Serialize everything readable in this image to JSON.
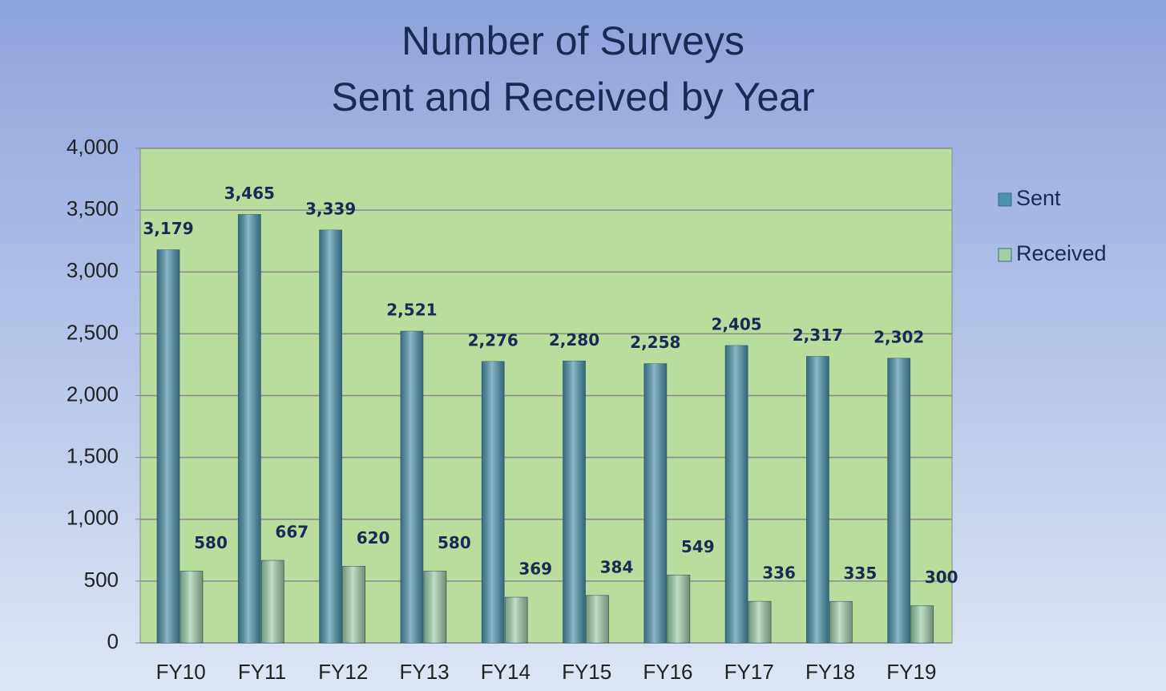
{
  "chart_data": {
    "type": "bar",
    "title": [
      "Number of Surveys",
      "Sent and Received by Year"
    ],
    "categories": [
      "FY10",
      "FY11",
      "FY12",
      "FY13",
      "FY14",
      "FY15",
      "FY16",
      "FY17",
      "FY18",
      "FY19"
    ],
    "series": [
      {
        "name": "Sent",
        "color": "#4b93ad",
        "values": [
          3179,
          3465,
          3339,
          2521,
          2276,
          2280,
          2258,
          2405,
          2317,
          2302
        ],
        "value_labels": [
          "3,179",
          "3,465",
          "3,339",
          "2,521",
          "2,276",
          "2,280",
          "2,258",
          "2,405",
          "2,317",
          "2,302"
        ]
      },
      {
        "name": "Received",
        "color": "#9fcfa9",
        "values": [
          580,
          667,
          620,
          580,
          369,
          384,
          549,
          336,
          335,
          300
        ],
        "value_labels": [
          "580",
          "667",
          "620",
          "580",
          "369",
          "384",
          "549",
          "336",
          "335",
          "300"
        ]
      }
    ],
    "ylim": [
      0,
      4000
    ],
    "yticks": [
      0,
      500,
      {
        "value": 1000,
        "label": "1,000"
      },
      {
        "value": 1500,
        "label": "1,500"
      },
      {
        "value": 2000,
        "label": "2,000"
      },
      {
        "value": 2500,
        "label": "2,500"
      },
      {
        "value": 3000,
        "label": "3,000"
      },
      {
        "value": 3500,
        "label": "3,500"
      },
      {
        "value": 4000,
        "label": "4,000"
      }
    ],
    "grid": true,
    "legend": "right"
  }
}
